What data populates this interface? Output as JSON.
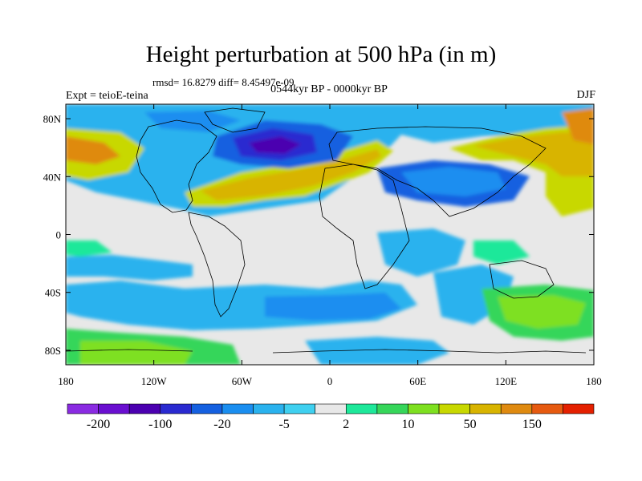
{
  "title": "Height perturbation at 500 hPa (in m)",
  "stats": "rmsd= 16.8279 diff= 8.45497e-09",
  "period": "0544kyr BP - 0000kyr BP",
  "experiment": "Expt = teioE-teina",
  "season": "DJF",
  "axes": {
    "lat_labels": [
      "80N",
      "40N",
      "0",
      "40S",
      "80S"
    ],
    "lat_values": [
      80,
      40,
      0,
      -40,
      -80
    ],
    "lon_labels": [
      "180",
      "120W",
      "60W",
      "0",
      "60E",
      "120E",
      "180"
    ],
    "lon_values": [
      -180,
      -120,
      -60,
      0,
      60,
      120,
      180
    ]
  },
  "colorbar": {
    "colors": [
      "#8a2be2",
      "#6a0fd0",
      "#4b00b0",
      "#2a2ad0",
      "#1560e0",
      "#1a8ef0",
      "#2ab2ee",
      "#3fd0f0",
      "#e8e8e8",
      "#1ee89a",
      "#36d65a",
      "#7ee020",
      "#c8d800",
      "#d8b400",
      "#df8a10",
      "#e65a10",
      "#e42000"
    ],
    "labels": [
      "-200",
      "-100",
      "-20",
      "-5",
      "2",
      "10",
      "50",
      "150"
    ],
    "label_positions": [
      1,
      3,
      5,
      7,
      9,
      11,
      13,
      15
    ]
  }
}
